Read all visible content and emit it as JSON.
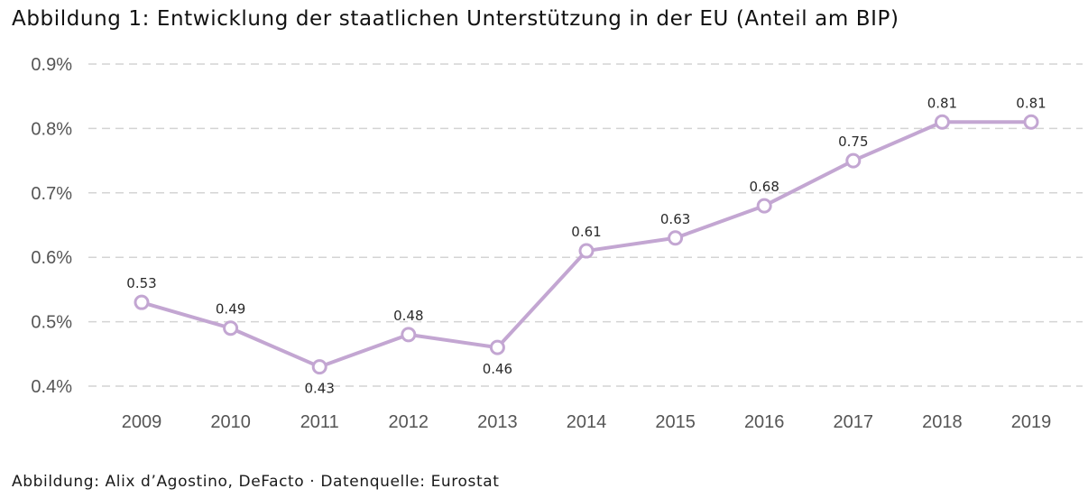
{
  "title": "Abbildung 1: Entwicklung der staatlichen Unterstützung in der EU (Anteil am BIP)",
  "footer": "Abbildung: Alix d’Agostino, DeFacto · Datenquelle: Eurostat",
  "chart_data": {
    "type": "line",
    "title": "Abbildung 1: Entwicklung der staatlichen Unterstützung in der EU (Anteil am BIP)",
    "xlabel": "",
    "ylabel": "",
    "categories": [
      "2009",
      "2010",
      "2011",
      "2012",
      "2013",
      "2014",
      "2015",
      "2016",
      "2017",
      "2018",
      "2019"
    ],
    "series": [
      {
        "name": "Staatliche Unterstützung (Anteil am BIP, %)",
        "values": [
          0.53,
          0.49,
          0.43,
          0.48,
          0.46,
          0.61,
          0.63,
          0.68,
          0.75,
          0.81,
          0.81
        ],
        "data_labels": [
          "0.53",
          "0.49",
          "0.43",
          "0.48",
          "0.46",
          "0.61",
          "0.63",
          "0.68",
          "0.75",
          "0.81",
          "0.81"
        ],
        "label_positions": [
          "above",
          "above",
          "below",
          "above",
          "below",
          "above",
          "above",
          "above",
          "above",
          "above",
          "above"
        ],
        "color": "#c3a6d2"
      }
    ],
    "ylim": [
      0.4,
      0.9
    ],
    "yticks": [
      0.4,
      0.5,
      0.6,
      0.7,
      0.8,
      0.9
    ],
    "ytick_labels": [
      "0.4%",
      "0.5%",
      "0.6%",
      "0.7%",
      "0.8%",
      "0.9%"
    ],
    "grid": true,
    "grid_style": "dashed-horizontal",
    "legend": "none",
    "source": "Eurostat"
  }
}
